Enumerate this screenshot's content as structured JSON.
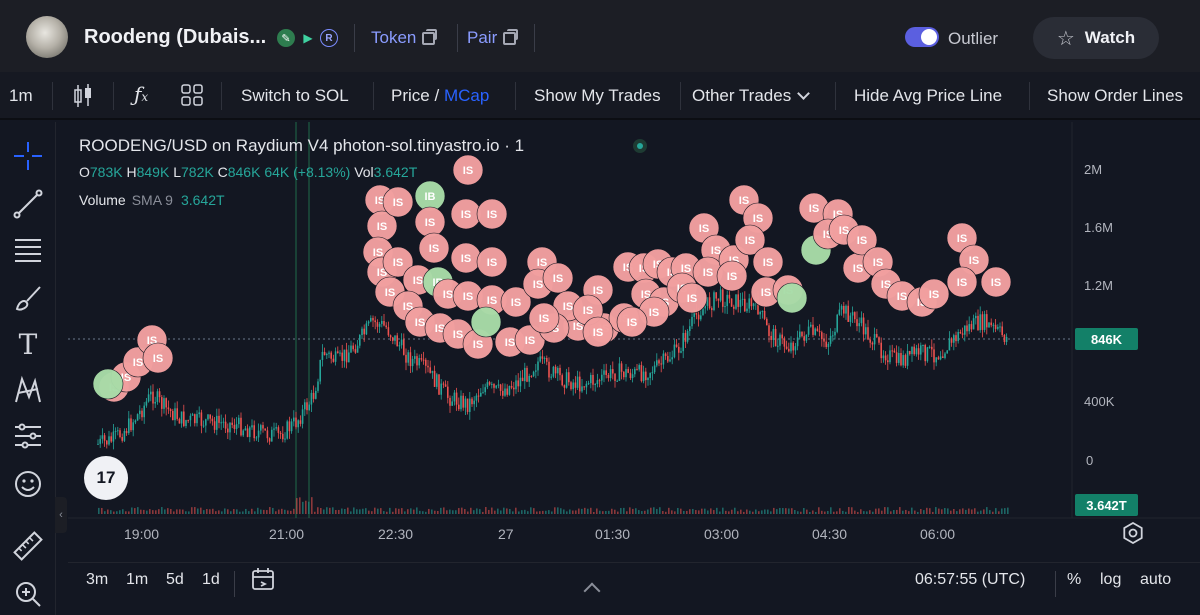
{
  "header": {
    "token_name": "Roodeng (Dubais...",
    "links": [
      {
        "label": "Token"
      },
      {
        "label": "Pair"
      }
    ],
    "outlier_label": "Outlier",
    "outlier_on": true,
    "watch_label": "Watch"
  },
  "toolbar": {
    "interval": "1m",
    "switch_label": "Switch to SOL",
    "price_label": "Price",
    "price_sep": "/",
    "mcap_label": "MCap",
    "show_my_trades": "Show My Trades",
    "other_trades": "Other Trades",
    "hide_avg": "Hide Avg Price Line",
    "show_order_lines": "Show Order Lines"
  },
  "legend": {
    "title": "ROODENG/USD on Raydium V4 photon-sol.tinyastro.io",
    "dot_sep": "·",
    "interval_num": "1",
    "o_key": "O",
    "o_val": "783K",
    "h_key": "H",
    "h_val": "849K",
    "l_key": "L",
    "l_val": "782K",
    "c_key": "C",
    "c_val": "846K",
    "change": "64K (+8.13%)",
    "vol_key": "Vol",
    "vol_val": "3.642T",
    "volume_label": "Volume",
    "sma_label": "SMA 9",
    "sma_val": "3.642T"
  },
  "price_axis": {
    "labels": [
      "2M",
      "1.6M",
      "1.2M",
      "846K",
      "400K",
      "0"
    ],
    "last_price": "846K",
    "volume_tag": "3.642T"
  },
  "time_axis": {
    "labels": [
      "19:00",
      "21:00",
      "22:30",
      "27",
      "01:30",
      "03:00",
      "04:30",
      "06:00"
    ]
  },
  "trade_marker": {
    "sell_label": "IS",
    "buy_label": "IB",
    "sell_color": "#f2a0a0",
    "buy_color": "#a8dca8"
  },
  "logo_text": "17",
  "bottom": {
    "ranges": [
      "3m",
      "1m",
      "5d",
      "1d"
    ],
    "time": "06:57:55 (UTC)",
    "percent": "%",
    "log": "log",
    "auto": "auto"
  },
  "colors": {
    "up": "#26a69a",
    "down": "#ef5350",
    "accent": "#2962ff"
  }
}
